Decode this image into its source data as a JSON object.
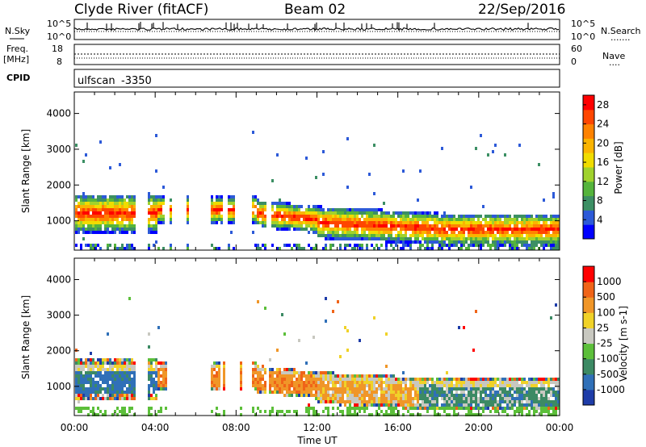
{
  "header": {
    "station": "Clyde River (fitACF)",
    "beam": "Beam 02",
    "date": "22/Sep/2016"
  },
  "strip_nsky": {
    "label": "N.Sky",
    "ticks_left": [
      "10^5",
      "10^0"
    ],
    "ticks_right": [
      "10^5",
      "10^0"
    ],
    "right_label": "N.Search",
    "right_dots": "......."
  },
  "strip_freq": {
    "label_line1": "Freq.",
    "label_line2": "[MHz]",
    "ticks_left": [
      "18",
      "8"
    ],
    "ticks_right": [
      "60",
      "0"
    ],
    "right_label": "Nave",
    "right_dots": "...."
  },
  "cpid": {
    "label": "CPID",
    "scan_name": "ulfscan",
    "scan_id": "-3350"
  },
  "chart_data": [
    {
      "type": "heatmap",
      "panel": "power",
      "ylabel": "Slant Range [km]",
      "ylim": [
        180,
        4600
      ],
      "yticks": [
        "1000",
        "2000",
        "3000",
        "4000"
      ],
      "xlim": [
        "00:00",
        "24:00"
      ],
      "colorbar": {
        "label": "Power [dB]",
        "ticks": [
          "4",
          "8",
          "12",
          "16",
          "20",
          "24",
          "28"
        ],
        "range": [
          0,
          30
        ],
        "colors": [
          "#0000ff",
          "#2d5ad8",
          "#3c8f64",
          "#55b43c",
          "#a0d22d",
          "#f0dc00",
          "#fab400",
          "#ff8200",
          "#ff4600",
          "#ff0000"
        ]
      }
    },
    {
      "type": "heatmap",
      "panel": "velocity",
      "ylabel": "Slant Range [km]",
      "ylim": [
        180,
        4600
      ],
      "yticks": [
        "1000",
        "2000",
        "3000",
        "4000"
      ],
      "xlim": [
        "00:00",
        "24:00"
      ],
      "xticks": [
        "00:00",
        "04:00",
        "08:00",
        "12:00",
        "16:00",
        "20:00",
        "00:00"
      ],
      "xlabel": "Time UT",
      "colorbar": {
        "label": "Velocity [m s-1]",
        "ticks": [
          "1000",
          "500",
          "100",
          "25",
          "-25",
          "-100",
          "-500",
          "-1000"
        ],
        "colors": [
          "#1e3ca8",
          "#3070b8",
          "#3c8a64",
          "#5cbf3a",
          "#c8c8c0",
          "#f0d228",
          "#f09628",
          "#f06418",
          "#ff0000"
        ]
      }
    }
  ]
}
